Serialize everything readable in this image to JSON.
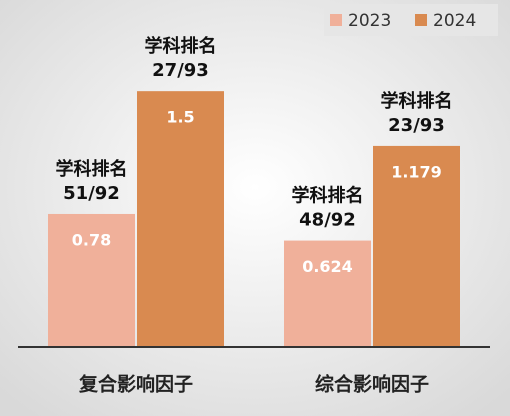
{
  "chart_data": {
    "type": "bar",
    "categories": [
      "复合影响因子",
      "综合影响因子"
    ],
    "series": [
      {
        "name": "2023",
        "color": "#f0b09a",
        "values": [
          0.78,
          0.624
        ],
        "rank_labels": [
          [
            "学科排名",
            "51/92"
          ],
          [
            "学科排名",
            "48/92"
          ]
        ]
      },
      {
        "name": "2024",
        "color": "#d98a50",
        "values": [
          1.5,
          1.179
        ],
        "rank_labels": [
          [
            "学科排名",
            "27/93"
          ],
          [
            "学科排名",
            "23/93"
          ]
        ]
      }
    ],
    "ylim": [
      0,
      1.8
    ],
    "legend": "top-right"
  }
}
